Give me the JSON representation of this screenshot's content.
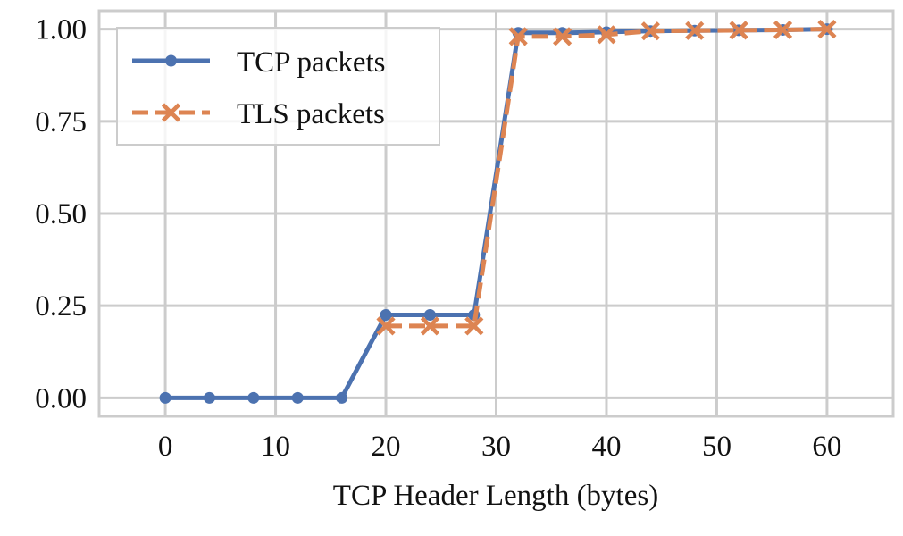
{
  "chart_data": {
    "type": "line",
    "xlabel": "TCP Header Length (bytes)",
    "ylabel": "",
    "xlim": [
      -6,
      66
    ],
    "ylim": [
      -0.05,
      1.05
    ],
    "xticks": [
      0,
      10,
      20,
      30,
      40,
      50,
      60
    ],
    "yticks": [
      0.0,
      0.25,
      0.5,
      0.75,
      1.0
    ],
    "ytick_labels": [
      "0.00",
      "0.25",
      "0.50",
      "0.75",
      "1.00"
    ],
    "grid": true,
    "legend_position": "top-left",
    "series": [
      {
        "name": "TCP packets",
        "color": "#4c72b0",
        "line_style": "solid",
        "marker": "circle",
        "x": [
          0,
          4,
          8,
          12,
          16,
          20,
          24,
          28,
          32,
          36,
          40,
          44,
          48,
          52,
          56,
          60
        ],
        "y": [
          0.0,
          0.0,
          0.0,
          0.0,
          0.0,
          0.225,
          0.225,
          0.225,
          0.99,
          0.99,
          0.992,
          0.995,
          0.996,
          0.997,
          0.998,
          1.0
        ]
      },
      {
        "name": "TLS packets",
        "color": "#dd8452",
        "line_style": "dashed",
        "marker": "x",
        "x": [
          20,
          24,
          28,
          32,
          36,
          40,
          44,
          48,
          52,
          56,
          60
        ],
        "y": [
          0.195,
          0.195,
          0.195,
          0.98,
          0.98,
          0.985,
          0.995,
          0.996,
          0.997,
          0.998,
          1.0
        ]
      }
    ]
  }
}
